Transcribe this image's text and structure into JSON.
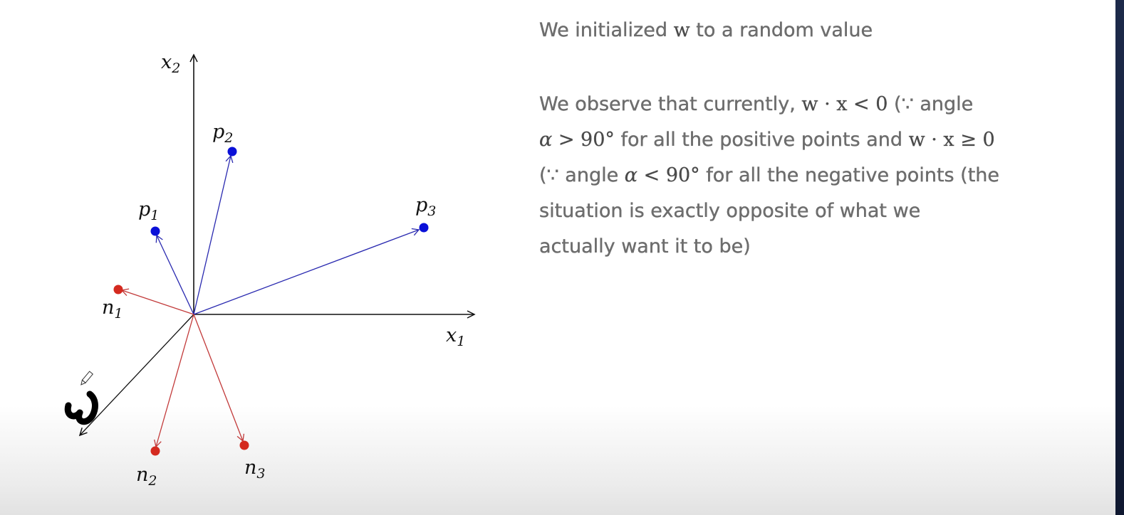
{
  "diagram": {
    "axis_labels": {
      "x1_base": "x",
      "x1_sub": "1",
      "x2_base": "x",
      "x2_sub": "2"
    },
    "positive_points": [
      {
        "base": "p",
        "sub": "1"
      },
      {
        "base": "p",
        "sub": "2"
      },
      {
        "base": "p",
        "sub": "3"
      }
    ],
    "negative_points": [
      {
        "base": "n",
        "sub": "1"
      },
      {
        "base": "n",
        "sub": "2"
      },
      {
        "base": "n",
        "sub": "3"
      }
    ],
    "handwritten_w_label": "w",
    "colors": {
      "positive": "#0a10d8",
      "negative": "#d42a1f",
      "positive_vec": "#2a2ab0",
      "negative_vec": "#c23a3a",
      "axis": "#111111"
    }
  },
  "text": {
    "line1_pre": "We initialized ",
    "line1_math": "w",
    "line1_post": " to a random value",
    "p_line1_pre": "We observe that currently, ",
    "p_line1_math": "w · x < 0",
    "p_line1_post": " (∵ angle",
    "p_line2_alpha": "α",
    "p_line2_math": " > 90°",
    "p_line2_mid": " for all the positive points and ",
    "p_line2_math2": "w · x ≥ 0",
    "p_line3_pre": "(∵ angle ",
    "p_line3_alpha": "α",
    "p_line3_math": " < 90°",
    "p_line3_post": " for all the negative points (the",
    "p_line4": "situation is exactly opposite of what we",
    "p_line5": "actually want it to be)"
  }
}
